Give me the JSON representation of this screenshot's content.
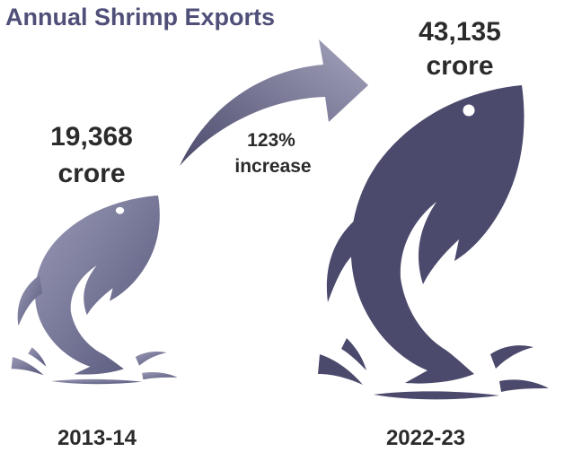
{
  "title": "Annual Shrimp Exports",
  "items": [
    {
      "value": "19,368",
      "unit": "crore",
      "year": "2013-14"
    },
    {
      "value": "43,135",
      "unit": "crore",
      "year": "2022-23"
    }
  ],
  "change": {
    "line1": "123%",
    "line2": "increase"
  }
}
